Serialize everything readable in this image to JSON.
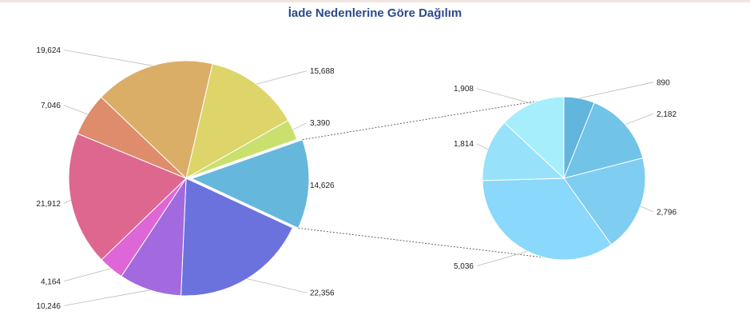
{
  "chart_data": {
    "type": "pie",
    "title": "İade Nedenlerine Göre Dağılım",
    "main_pie": {
      "slices": [
        {
          "label": "15,688",
          "value": 15688,
          "color": "#ded56a"
        },
        {
          "label": "3,390",
          "value": 3390,
          "color": "#c9e06e"
        },
        {
          "label": "14,626",
          "value": 14626,
          "color": "#66b7dc"
        },
        {
          "label": "22,356",
          "value": 22356,
          "color": "#6b72de"
        },
        {
          "label": "10,246",
          "value": 10246,
          "color": "#a26ade"
        },
        {
          "label": "4,164",
          "value": 4164,
          "color": "#de66d6"
        },
        {
          "label": "21,912",
          "value": 21912,
          "color": "#de6790"
        },
        {
          "label": "7,046",
          "value": 7046,
          "color": "#de8c6b"
        },
        {
          "label": "19,624",
          "value": 19624,
          "color": "#dbae68"
        }
      ],
      "exploded_slice_index": 2
    },
    "detail_pie": {
      "slices": [
        {
          "label": "890",
          "value": 890,
          "color": "#62b5dc"
        },
        {
          "label": "2,182",
          "value": 2182,
          "color": "#72c3e8"
        },
        {
          "label": "2,796",
          "value": 2796,
          "color": "#7fcdf1"
        },
        {
          "label": "5,036",
          "value": 5036,
          "color": "#8ad8fb"
        },
        {
          "label": "1,814",
          "value": 1814,
          "color": "#98e1fb"
        },
        {
          "label": "1,908",
          "value": 1908,
          "color": "#a7eefd"
        }
      ]
    }
  }
}
